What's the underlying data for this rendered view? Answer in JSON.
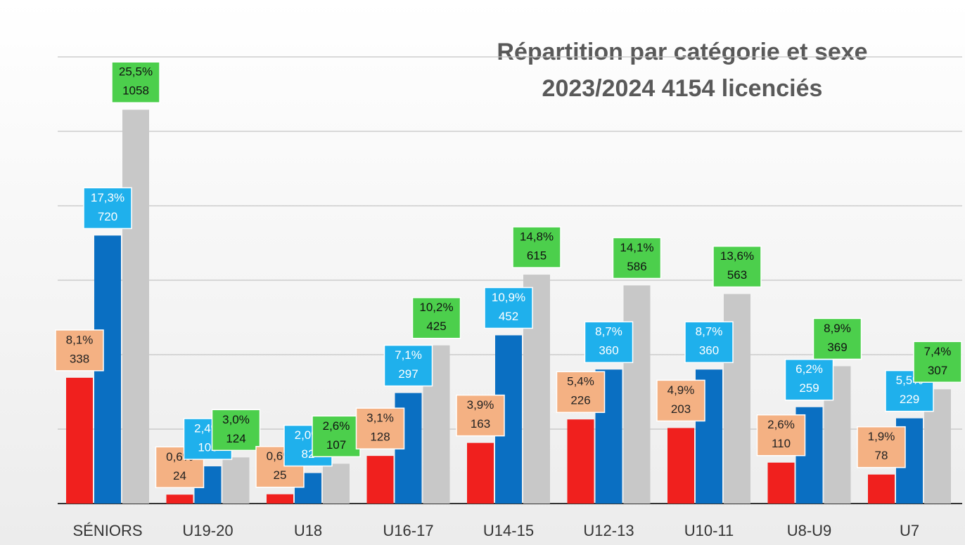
{
  "chart_data": {
    "type": "bar",
    "title": [
      "Répartition par catégorie et sexe",
      "2023/2024  4154 licenciés"
    ],
    "categories": [
      "SÉNIORS",
      "U19-20",
      "U18",
      "U16-17",
      "U14-15",
      "U12-13",
      "U10-11",
      "U8-U9",
      "U7"
    ],
    "series": [
      {
        "color": "#f0201e",
        "label_color": "#f4b183",
        "label_text_color": "#222222",
        "values": [
          338,
          24,
          25,
          128,
          163,
          226,
          203,
          110,
          78
        ],
        "percentages": [
          8.1,
          0.6,
          0.6,
          3.1,
          3.9,
          5.4,
          4.9,
          2.6,
          1.9
        ],
        "percentage_labels": [
          "8,1%",
          "0,6%",
          "0,6%",
          "3,1%",
          "3,9%",
          "5,4%",
          "4,9%",
          "2,6%",
          "1,9%"
        ]
      },
      {
        "color": "#0a6fc2",
        "label_color": "#1fb0ec",
        "label_text_color": "#ffffff",
        "values": [
          720,
          100,
          82,
          297,
          452,
          360,
          360,
          259,
          229
        ],
        "percentages": [
          17.3,
          2.4,
          2.0,
          7.1,
          10.9,
          8.7,
          8.7,
          6.2,
          5.5
        ],
        "percentage_labels": [
          "17,3%",
          "2,4%",
          "2,0%",
          "7,1%",
          "10,9%",
          "8,7%",
          "8,7%",
          "6,2%",
          "5,5%"
        ]
      },
      {
        "color": "#c8c8c8",
        "label_color": "#4ccf4c",
        "label_text_color": "#111111",
        "values": [
          1058,
          124,
          107,
          425,
          615,
          586,
          563,
          369,
          307
        ],
        "percentages": [
          25.5,
          3.0,
          2.6,
          10.2,
          14.8,
          14.1,
          13.6,
          8.9,
          7.4
        ],
        "percentage_labels": [
          "25,5%",
          "3,0%",
          "2,6%",
          "10,2%",
          "14,8%",
          "14,1%",
          "13,6%",
          "8,9%",
          "7,4%"
        ]
      }
    ],
    "ylim": [
      0,
      1200
    ],
    "yticks": [
      0,
      200,
      400,
      600,
      800,
      1000,
      1200
    ],
    "grid": true
  }
}
